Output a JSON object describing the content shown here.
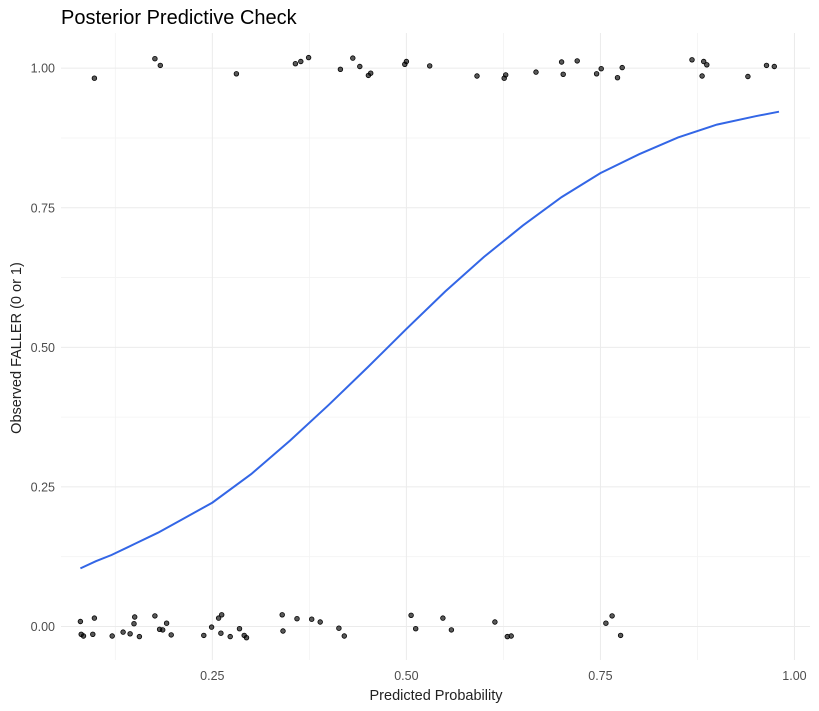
{
  "chart_data": {
    "type": "scatter",
    "title": "Posterior Predictive Check",
    "xlabel": "Predicted Probability",
    "ylabel": "Observed FALLER (0 or 1)",
    "xlim": [
      0.055,
      1.02
    ],
    "ylim": [
      -0.06,
      1.063
    ],
    "x_ticks": [
      0.25,
      0.5,
      0.75,
      1.0
    ],
    "x_tick_labels": [
      "0.25",
      "0.50",
      "0.75",
      "1.00"
    ],
    "y_ticks": [
      0.0,
      0.25,
      0.5,
      0.75,
      1.0
    ],
    "y_tick_labels": [
      "0.00",
      "0.25",
      "0.50",
      "0.75",
      "1.00"
    ],
    "grid": true,
    "point_color": "#000000",
    "line_color": "#3366e6",
    "series": [
      {
        "type": "scatter",
        "points": [
          [
            0.098,
            0.982
          ],
          [
            0.176,
            1.017
          ],
          [
            0.183,
            1.005
          ],
          [
            0.281,
            0.99
          ],
          [
            0.357,
            1.008
          ],
          [
            0.364,
            1.012
          ],
          [
            0.374,
            1.019
          ],
          [
            0.415,
            0.998
          ],
          [
            0.431,
            1.018
          ],
          [
            0.44,
            1.003
          ],
          [
            0.451,
            0.987
          ],
          [
            0.454,
            0.991
          ],
          [
            0.498,
            1.007
          ],
          [
            0.5,
            1.012
          ],
          [
            0.53,
            1.004
          ],
          [
            0.591,
            0.986
          ],
          [
            0.626,
            0.982
          ],
          [
            0.628,
            0.988
          ],
          [
            0.667,
            0.993
          ],
          [
            0.7,
            1.011
          ],
          [
            0.702,
            0.989
          ],
          [
            0.72,
            1.013
          ],
          [
            0.745,
            0.99
          ],
          [
            0.751,
            0.999
          ],
          [
            0.772,
            0.983
          ],
          [
            0.778,
            1.001
          ],
          [
            0.868,
            1.015
          ],
          [
            0.881,
            0.986
          ],
          [
            0.883,
            1.012
          ],
          [
            0.887,
            1.006
          ],
          [
            0.94,
            0.985
          ],
          [
            0.964,
            1.005
          ],
          [
            0.974,
            1.003
          ],
          [
            0.08,
            0.009
          ],
          [
            0.081,
            -0.014
          ],
          [
            0.084,
            -0.017
          ],
          [
            0.096,
            -0.014
          ],
          [
            0.098,
            0.015
          ],
          [
            0.121,
            -0.017
          ],
          [
            0.135,
            -0.01
          ],
          [
            0.144,
            -0.013
          ],
          [
            0.149,
            0.005
          ],
          [
            0.15,
            0.017
          ],
          [
            0.156,
            -0.018
          ],
          [
            0.176,
            0.019
          ],
          [
            0.182,
            -0.005
          ],
          [
            0.186,
            -0.006
          ],
          [
            0.191,
            0.006
          ],
          [
            0.197,
            -0.015
          ],
          [
            0.239,
            -0.016
          ],
          [
            0.249,
            -0.001
          ],
          [
            0.258,
            0.015
          ],
          [
            0.262,
            0.021
          ],
          [
            0.261,
            -0.012
          ],
          [
            0.273,
            -0.018
          ],
          [
            0.285,
            -0.004
          ],
          [
            0.291,
            -0.016
          ],
          [
            0.294,
            -0.02
          ],
          [
            0.34,
            0.021
          ],
          [
            0.341,
            -0.008
          ],
          [
            0.359,
            0.014
          ],
          [
            0.378,
            0.013
          ],
          [
            0.389,
            0.008
          ],
          [
            0.413,
            -0.003
          ],
          [
            0.42,
            -0.017
          ],
          [
            0.506,
            0.02
          ],
          [
            0.512,
            -0.004
          ],
          [
            0.547,
            0.015
          ],
          [
            0.558,
            -0.006
          ],
          [
            0.614,
            0.008
          ],
          [
            0.63,
            -0.018
          ],
          [
            0.635,
            -0.017
          ],
          [
            0.757,
            0.006
          ],
          [
            0.765,
            0.019
          ],
          [
            0.776,
            -0.016
          ]
        ]
      },
      {
        "type": "line",
        "x": [
          0.08,
          0.1,
          0.12,
          0.15,
          0.18,
          0.21,
          0.25,
          0.3,
          0.35,
          0.4,
          0.45,
          0.5,
          0.55,
          0.6,
          0.65,
          0.7,
          0.75,
          0.8,
          0.85,
          0.9,
          0.95,
          0.98
        ],
        "y": [
          0.104,
          0.117,
          0.128,
          0.148,
          0.168,
          0.191,
          0.222,
          0.273,
          0.333,
          0.397,
          0.464,
          0.533,
          0.6,
          0.662,
          0.718,
          0.769,
          0.812,
          0.846,
          0.876,
          0.899,
          0.914,
          0.922
        ]
      }
    ]
  }
}
